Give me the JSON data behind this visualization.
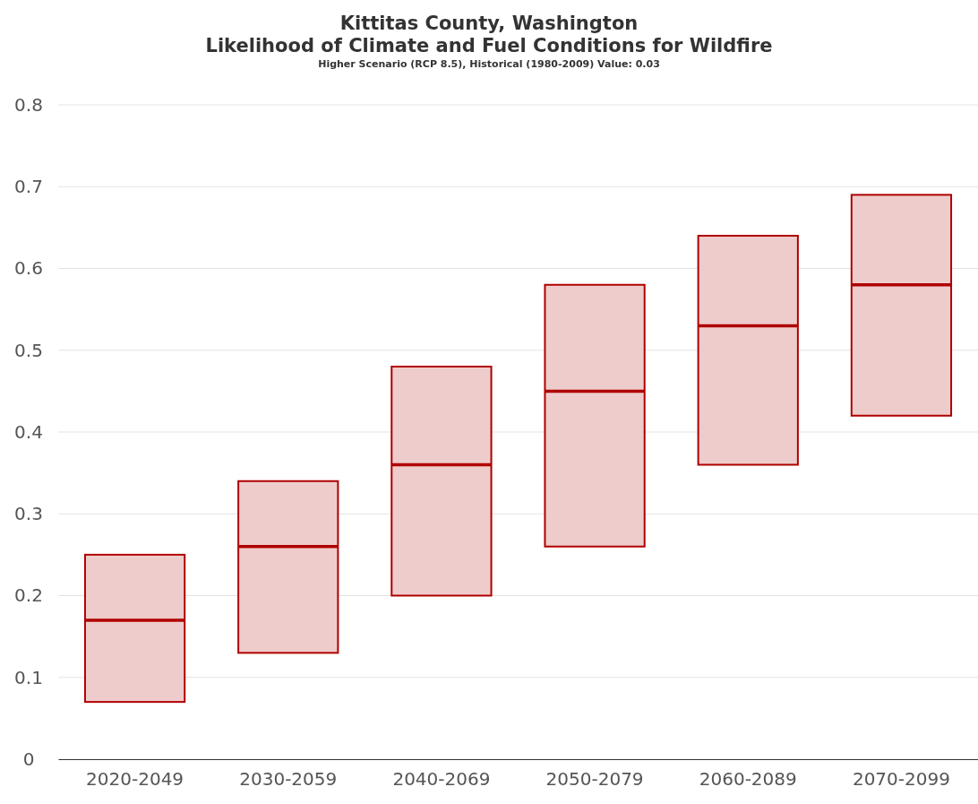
{
  "chart_data": {
    "type": "box",
    "title": "Kittitas County, Washington\nLikelihood of Climate and Fuel Conditions for Wildfire",
    "subtitle": "Higher Scenario (RCP 8.5), Historical (1980-2009) Value: 0.03",
    "categories": [
      "2020-2049",
      "2030-2059",
      "2040-2069",
      "2050-2079",
      "2060-2089",
      "2070-2099"
    ],
    "boxes": [
      {
        "low": 0.07,
        "q1": 0.07,
        "median": 0.17,
        "q3": 0.25,
        "high": 0.25
      },
      {
        "low": 0.13,
        "q1": 0.13,
        "median": 0.26,
        "q3": 0.34,
        "high": 0.34
      },
      {
        "low": 0.2,
        "q1": 0.2,
        "median": 0.36,
        "q3": 0.48,
        "high": 0.48
      },
      {
        "low": 0.26,
        "q1": 0.26,
        "median": 0.45,
        "q3": 0.58,
        "high": 0.58
      },
      {
        "low": 0.36,
        "q1": 0.36,
        "median": 0.53,
        "q3": 0.64,
        "high": 0.64
      },
      {
        "low": 0.42,
        "q1": 0.42,
        "median": 0.58,
        "q3": 0.69,
        "high": 0.69
      }
    ],
    "color": "#b00000",
    "ylim": [
      0,
      0.8
    ],
    "yticks": [
      0,
      0.1,
      0.2,
      0.3,
      0.4,
      0.5,
      0.6,
      0.7,
      0.8
    ],
    "grid": "y"
  }
}
